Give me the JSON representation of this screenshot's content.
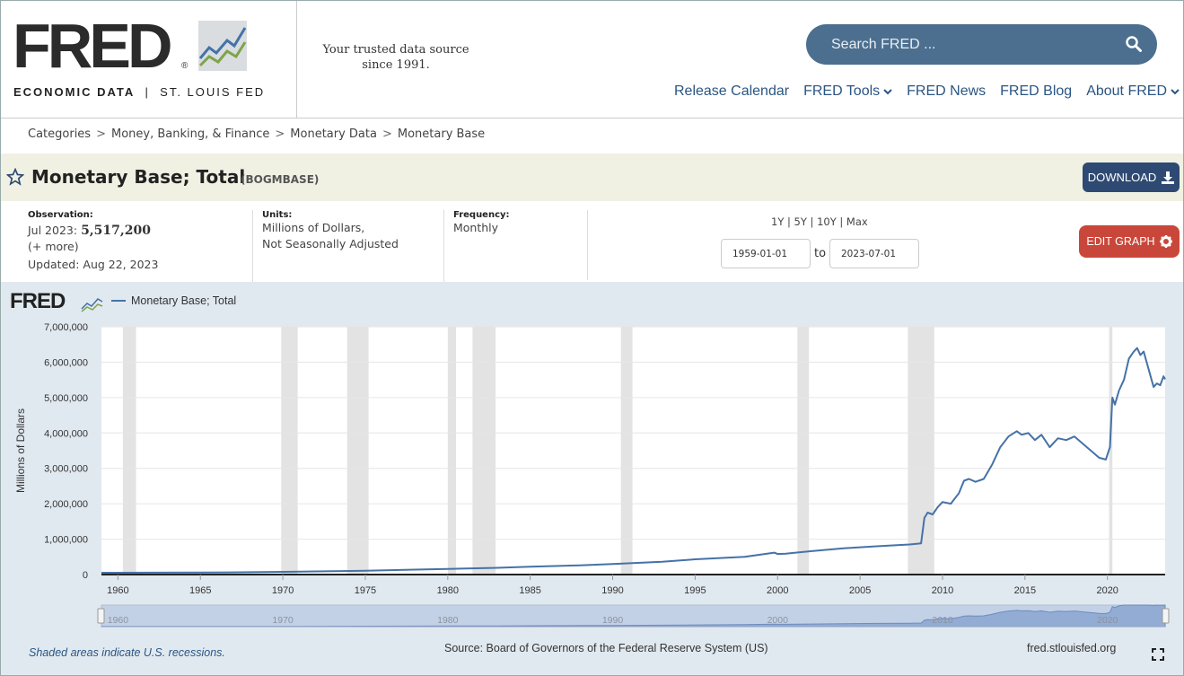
{
  "header": {
    "logo_text": "FRED",
    "logo_reg": "®",
    "logo_sub_left": "ECONOMIC DATA",
    "logo_sub_right": "ST. LOUIS FED",
    "tagline": "Your trusted data source since 1991.",
    "search_placeholder": "Search FRED ...",
    "nav": [
      "Release Calendar",
      "FRED Tools",
      "FRED News",
      "FRED Blog",
      "About FRED"
    ]
  },
  "breadcrumb": [
    "Categories",
    "Money, Banking, & Finance",
    "Monetary Data",
    "Monetary Base"
  ],
  "series": {
    "title": "Monetary Base; Total",
    "id": "(BOGMBASE)",
    "download_label": "DOWNLOAD",
    "observation_label": "Observation:",
    "observation_date": "Jul 2023:",
    "observation_value": "5,517,200",
    "more_label": "(+ more)",
    "updated": "Updated: Aug 22, 2023",
    "units_label": "Units:",
    "units_line1": "Millions of Dollars,",
    "units_line2": "Not Seasonally Adjusted",
    "frequency_label": "Frequency:",
    "frequency_value": "Monthly",
    "range_links": [
      "1Y",
      "5Y",
      "10Y",
      "Max"
    ],
    "start_date": "1959-01-01",
    "end_date": "2023-07-01",
    "to_label": "to",
    "edit_label": "EDIT GRAPH"
  },
  "footer": {
    "recession_note": "Shaded areas indicate U.S. recessions.",
    "source": "Source: Board of Governors of the Federal Reserve System (US)",
    "url": "fred.stlouisfed.org"
  },
  "chart_data": {
    "type": "line",
    "legend_label": "Monetary Base; Total",
    "mini_logo": "FRED",
    "ylabel": "Millions of Dollars",
    "xlabel": "",
    "ylim": [
      0,
      7000000
    ],
    "xlim": [
      1959.0,
      2023.5
    ],
    "yticks": [
      0,
      1000000,
      2000000,
      3000000,
      4000000,
      5000000,
      6000000,
      7000000
    ],
    "ytick_labels": [
      "0",
      "1,000,000",
      "2,000,000",
      "3,000,000",
      "4,000,000",
      "5,000,000",
      "6,000,000",
      "7,000,000"
    ],
    "xticks": [
      1960,
      1965,
      1970,
      1975,
      1980,
      1985,
      1990,
      1995,
      2000,
      2005,
      2010,
      2015,
      2020
    ],
    "navigator_ticks": [
      1960,
      1970,
      1980,
      1990,
      2000,
      2010,
      2020
    ],
    "grid": true,
    "line_color": "#4572a7",
    "recessions": [
      [
        1960.3,
        1961.1
      ],
      [
        1969.9,
        1970.9
      ],
      [
        1973.9,
        1975.2
      ],
      [
        1980.0,
        1980.5
      ],
      [
        1981.5,
        1982.9
      ],
      [
        1990.5,
        1991.2
      ],
      [
        2001.2,
        2001.9
      ],
      [
        2007.9,
        2009.5
      ],
      [
        2020.1,
        2020.3
      ]
    ],
    "series": [
      {
        "name": "Monetary Base; Total",
        "x": [
          1959,
          1962,
          1965,
          1968,
          1970,
          1973,
          1975,
          1978,
          1980,
          1983,
          1985,
          1988,
          1990,
          1993,
          1995,
          1998,
          1999.8,
          2000.0,
          2000.5,
          2002,
          2004,
          2006,
          2008.0,
          2008.7,
          2008.9,
          2009.1,
          2009.4,
          2009.7,
          2010.0,
          2010.5,
          2011.0,
          2011.3,
          2011.6,
          2012.0,
          2012.5,
          2013.0,
          2013.5,
          2014.0,
          2014.5,
          2014.8,
          2015.2,
          2015.6,
          2016.0,
          2016.5,
          2017.0,
          2017.5,
          2018.0,
          2018.5,
          2019.0,
          2019.5,
          2019.9,
          2020.15,
          2020.3,
          2020.45,
          2020.7,
          2021.0,
          2021.3,
          2021.6,
          2021.8,
          2022.0,
          2022.2,
          2022.5,
          2022.8,
          2023.0,
          2023.2,
          2023.4,
          2023.5
        ],
        "values": [
          50000,
          52000,
          55000,
          65000,
          75000,
          95000,
          110000,
          140000,
          160000,
          190000,
          220000,
          260000,
          300000,
          360000,
          430000,
          500000,
          620000,
          580000,
          590000,
          660000,
          740000,
          800000,
          850000,
          880000,
          1600000,
          1750000,
          1700000,
          1900000,
          2050000,
          2000000,
          2300000,
          2650000,
          2700000,
          2620000,
          2700000,
          3100000,
          3600000,
          3900000,
          4050000,
          3950000,
          4000000,
          3800000,
          3950000,
          3600000,
          3850000,
          3800000,
          3900000,
          3700000,
          3500000,
          3300000,
          3250000,
          3600000,
          5000000,
          4800000,
          5200000,
          5500000,
          6100000,
          6300000,
          6400000,
          6200000,
          6300000,
          5800000,
          5300000,
          5400000,
          5350000,
          5600000,
          5517200
        ]
      }
    ]
  }
}
